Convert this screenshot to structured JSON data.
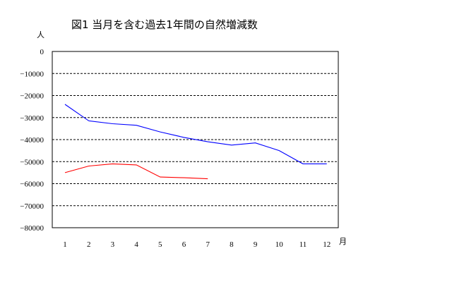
{
  "chart_data": {
    "type": "line",
    "title": "図1 当月を含む過去1年間の自然増減数",
    "ylabel": "人",
    "xlabel": "月",
    "categories": [
      "1",
      "2",
      "3",
      "4",
      "5",
      "6",
      "7",
      "8",
      "9",
      "10",
      "11",
      "12"
    ],
    "ylim": [
      -80000,
      0
    ],
    "yticks": [
      0,
      -10000,
      -20000,
      -30000,
      -40000,
      -50000,
      -60000,
      -70000,
      -80000
    ],
    "ytick_labels": [
      "0",
      "−10000",
      "−20000",
      "−30000",
      "−40000",
      "−50000",
      "−60000",
      "−70000",
      "−80000"
    ],
    "grid": true,
    "legend": "none",
    "series": [
      {
        "color": "#0000ff",
        "values": [
          -24000,
          -31500,
          -32800,
          -33500,
          -36500,
          -39000,
          -41000,
          -42500,
          -41500,
          -45000,
          -51000,
          -51000
        ]
      },
      {
        "color": "#ff0000",
        "values": [
          -55000,
          -52000,
          -51000,
          -51500,
          -57000,
          -57300,
          -57800,
          null,
          null,
          null,
          null,
          null
        ]
      }
    ]
  }
}
